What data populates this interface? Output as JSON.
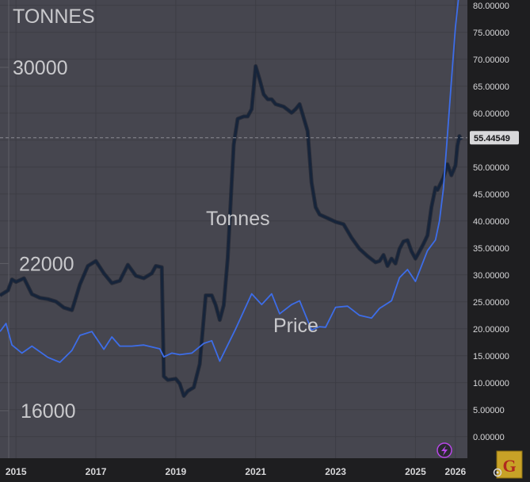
{
  "chart_data": {
    "type": "line",
    "left_axis": {
      "unit_label": "TONNES",
      "tick_labels": [
        {
          "label": "30000",
          "value": 30000
        },
        {
          "label": "22000",
          "value": 22000
        },
        {
          "label": "16000",
          "value": 16000
        }
      ]
    },
    "right_axis": {
      "range": [
        -4,
        81
      ],
      "ticks": [
        "0.00000",
        "5.00000",
        "10.00000",
        "15.00000",
        "20.00000",
        "25.00000",
        "30.00000",
        "35.00000",
        "40.00000",
        "45.00000",
        "50.00000",
        "55.00000",
        "60.00000",
        "65.00000",
        "70.00000",
        "75.00000",
        "80.00000"
      ],
      "current_value": 55.44549,
      "current_label": "55.44549"
    },
    "x_axis": {
      "range": [
        2014.6,
        2026.3
      ],
      "ticks": [
        "2015",
        "2017",
        "2019",
        "2021",
        "2023",
        "2025",
        "2026"
      ]
    },
    "annotations": [
      {
        "text": "Tonnes",
        "series": "tonnes"
      },
      {
        "text": "Price",
        "series": "price"
      }
    ],
    "series": [
      {
        "name": "Tonnes",
        "color": "#16243a",
        "axis": "left",
        "points": [
          [
            2014.6,
            20700
          ],
          [
            2014.8,
            20900
          ],
          [
            2014.9,
            21350
          ],
          [
            2015.0,
            21250
          ],
          [
            2015.2,
            21400
          ],
          [
            2015.4,
            20750
          ],
          [
            2015.6,
            20600
          ],
          [
            2015.8,
            20550
          ],
          [
            2016.0,
            20450
          ],
          [
            2016.2,
            20200
          ],
          [
            2016.4,
            20100
          ],
          [
            2016.45,
            20350
          ],
          [
            2016.6,
            21150
          ],
          [
            2016.8,
            21900
          ],
          [
            2017.0,
            22100
          ],
          [
            2017.2,
            21600
          ],
          [
            2017.4,
            21200
          ],
          [
            2017.6,
            21300
          ],
          [
            2017.8,
            21950
          ],
          [
            2018.0,
            21500
          ],
          [
            2018.2,
            21400
          ],
          [
            2018.4,
            21600
          ],
          [
            2018.5,
            21900
          ],
          [
            2018.65,
            21850
          ],
          [
            2018.7,
            17400
          ],
          [
            2018.8,
            17250
          ],
          [
            2019.0,
            17300
          ],
          [
            2019.1,
            17100
          ],
          [
            2019.2,
            16600
          ],
          [
            2019.3,
            16800
          ],
          [
            2019.45,
            16950
          ],
          [
            2019.6,
            17900
          ],
          [
            2019.75,
            20700
          ],
          [
            2019.9,
            20700
          ],
          [
            2020.0,
            20300
          ],
          [
            2020.1,
            19700
          ],
          [
            2020.2,
            20300
          ],
          [
            2020.3,
            22200
          ],
          [
            2020.45,
            26850
          ],
          [
            2020.55,
            27900
          ],
          [
            2020.7,
            28000
          ],
          [
            2020.8,
            28000
          ],
          [
            2020.9,
            28300
          ],
          [
            2021.0,
            30050
          ],
          [
            2021.1,
            29500
          ],
          [
            2021.2,
            28900
          ],
          [
            2021.3,
            28700
          ],
          [
            2021.4,
            28700
          ],
          [
            2021.5,
            28500
          ],
          [
            2021.7,
            28400
          ],
          [
            2021.9,
            28150
          ],
          [
            2022.0,
            28300
          ],
          [
            2022.1,
            28500
          ],
          [
            2022.3,
            27400
          ],
          [
            2022.4,
            25300
          ],
          [
            2022.5,
            24300
          ],
          [
            2022.6,
            24000
          ],
          [
            2022.8,
            23850
          ],
          [
            2023.0,
            23700
          ],
          [
            2023.2,
            23600
          ],
          [
            2023.4,
            23050
          ],
          [
            2023.6,
            22600
          ],
          [
            2023.8,
            22300
          ],
          [
            2024.0,
            22050
          ],
          [
            2024.1,
            22100
          ],
          [
            2024.2,
            22350
          ],
          [
            2024.3,
            21900
          ],
          [
            2024.4,
            22200
          ],
          [
            2024.5,
            22000
          ],
          [
            2024.6,
            22600
          ],
          [
            2024.7,
            22900
          ],
          [
            2024.8,
            22950
          ],
          [
            2024.9,
            22500
          ],
          [
            2025.0,
            22200
          ],
          [
            2025.1,
            22500
          ],
          [
            2025.2,
            22800
          ],
          [
            2025.3,
            23150
          ],
          [
            2025.4,
            24300
          ],
          [
            2025.5,
            25100
          ],
          [
            2025.55,
            25000
          ],
          [
            2025.7,
            25500
          ],
          [
            2025.8,
            26050
          ],
          [
            2025.9,
            25600
          ],
          [
            2026.0,
            26000
          ],
          [
            2026.05,
            26800
          ],
          [
            2026.1,
            27200
          ],
          [
            2026.15,
            27050
          ]
        ]
      },
      {
        "name": "Price",
        "color": "#3d6de8",
        "axis": "right",
        "points": [
          [
            2014.6,
            19.5
          ],
          [
            2014.75,
            21.0
          ],
          [
            2014.9,
            17.0
          ],
          [
            2015.15,
            15.5
          ],
          [
            2015.4,
            16.8
          ],
          [
            2015.8,
            14.7
          ],
          [
            2016.1,
            13.8
          ],
          [
            2016.4,
            16.0
          ],
          [
            2016.6,
            18.8
          ],
          [
            2016.9,
            19.5
          ],
          [
            2017.2,
            16.2
          ],
          [
            2017.4,
            18.5
          ],
          [
            2017.6,
            16.8
          ],
          [
            2017.9,
            16.8
          ],
          [
            2018.2,
            17.0
          ],
          [
            2018.6,
            16.3
          ],
          [
            2018.7,
            14.8
          ],
          [
            2018.9,
            15.5
          ],
          [
            2019.1,
            15.2
          ],
          [
            2019.4,
            15.5
          ],
          [
            2019.7,
            17.3
          ],
          [
            2019.9,
            17.8
          ],
          [
            2020.1,
            14.0
          ],
          [
            2020.5,
            20.0
          ],
          [
            2020.9,
            26.5
          ],
          [
            2021.15,
            24.5
          ],
          [
            2021.4,
            26.5
          ],
          [
            2021.6,
            22.8
          ],
          [
            2021.9,
            24.5
          ],
          [
            2022.1,
            25.2
          ],
          [
            2022.4,
            19.8
          ],
          [
            2022.6,
            20.4
          ],
          [
            2022.75,
            20.3
          ],
          [
            2023.0,
            24.0
          ],
          [
            2023.3,
            24.2
          ],
          [
            2023.6,
            22.5
          ],
          [
            2023.9,
            22.0
          ],
          [
            2024.1,
            23.8
          ],
          [
            2024.4,
            25.2
          ],
          [
            2024.6,
            29.5
          ],
          [
            2024.8,
            31.0
          ],
          [
            2025.0,
            28.8
          ],
          [
            2025.3,
            34.5
          ],
          [
            2025.5,
            36.5
          ],
          [
            2025.6,
            40.0
          ],
          [
            2025.7,
            46.0
          ],
          [
            2025.8,
            56.0
          ],
          [
            2025.9,
            66.0
          ],
          [
            2026.0,
            76.0
          ],
          [
            2026.08,
            81.5
          ]
        ]
      }
    ],
    "colors": {
      "background": "#46464f",
      "grid": "#3d3d45",
      "tonnes_line": "#16243a",
      "price_line": "#3d6de8",
      "crosshair": "#8a8a92",
      "price_tag": "#d8d8da",
      "flash_badge": "#b847e8"
    },
    "icons": [
      "flash-icon",
      "g-logo-icon",
      "settings-gear-icon"
    ]
  }
}
